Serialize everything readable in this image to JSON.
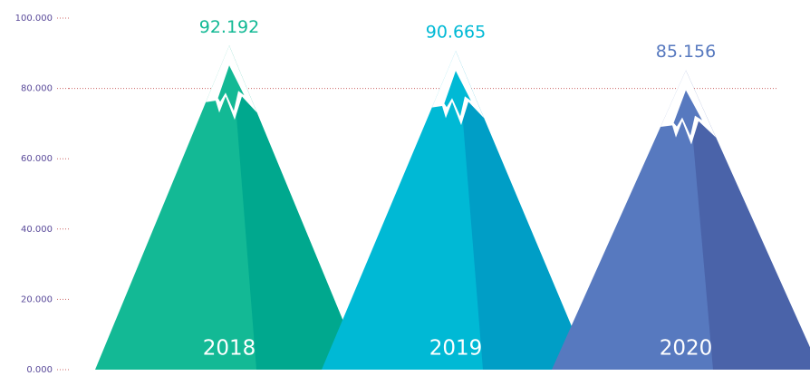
{
  "chart_data": {
    "type": "bar",
    "categories": [
      "2018",
      "2019",
      "2020"
    ],
    "values": [
      92.192,
      90.665,
      85.156
    ],
    "colors": [
      "#13b995",
      "#00b9d5",
      "#5779bf"
    ],
    "shade_colors": [
      "#00a88e",
      "#009ec6",
      "#4a63a9"
    ],
    "ylim": [
      0,
      100
    ],
    "yticks": [
      {
        "value": 0,
        "label": "0.000"
      },
      {
        "value": 20,
        "label": "20.000"
      },
      {
        "value": 40,
        "label": "40.000"
      },
      {
        "value": 60,
        "label": "60.000"
      },
      {
        "value": 80,
        "label": "80.000"
      },
      {
        "value": 100,
        "label": "100.000"
      }
    ],
    "reference_line": 80
  }
}
